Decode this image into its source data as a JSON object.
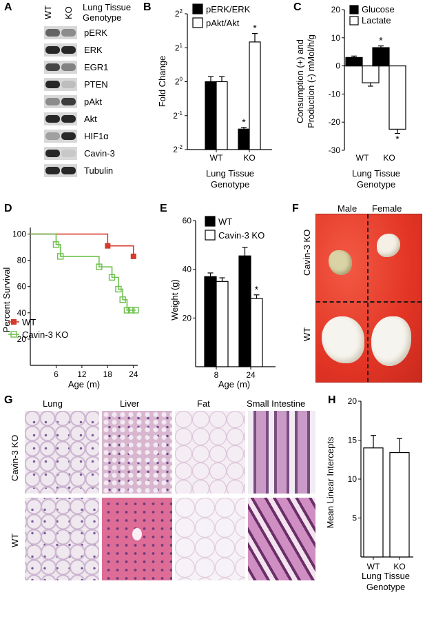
{
  "panels": [
    "A",
    "B",
    "C",
    "D",
    "E",
    "F",
    "G",
    "H"
  ],
  "panelA": {
    "lanes": [
      "WT",
      "KO"
    ],
    "header": [
      "Lung Tissue",
      "Genotype"
    ],
    "proteins": [
      "pERK",
      "ERK",
      "EGR1",
      "PTEN",
      "pAkt",
      "Akt",
      "HIF1α",
      "Cavin-3",
      "Tubulin"
    ],
    "wt_intensity": [
      0.55,
      0.85,
      0.7,
      0.85,
      0.35,
      0.85,
      0.25,
      0.85,
      0.85
    ],
    "ko_intensity": [
      0.35,
      0.85,
      0.4,
      0.1,
      0.75,
      0.85,
      0.85,
      0.05,
      0.85
    ]
  },
  "panelF": {
    "col_labels": [
      "Male",
      "Female"
    ],
    "row_labels": [
      "Cavin-3 KO",
      "WT"
    ]
  },
  "panelG": {
    "col_labels": [
      "Lung",
      "Liver",
      "Fat",
      "Small Intestine"
    ],
    "row_labels": [
      "Cavin-3 KO",
      "WT"
    ]
  },
  "chart_data": [
    {
      "panel": "B",
      "type": "bar",
      "categories": [
        "WT",
        "KO"
      ],
      "series": [
        {
          "name": "pERK/ERK",
          "color": "#000000",
          "values": [
            1.0,
            0.38
          ],
          "errors": [
            0.15,
            0.05
          ],
          "significant": [
            false,
            true
          ]
        },
        {
          "name": "pAkt/Akt",
          "color": "#ffffff",
          "values": [
            1.0,
            2.25
          ],
          "errors": [
            0.15,
            0.25
          ],
          "significant": [
            false,
            true
          ]
        }
      ],
      "ylabel": "Fold Change",
      "xlabel": [
        "Lung Tissue",
        "Genotype"
      ],
      "yscale": "log2",
      "ylim": [
        0.25,
        4
      ],
      "yticks_exp": [
        "2",
        "1",
        "0",
        "-1",
        "-2"
      ]
    },
    {
      "panel": "C",
      "type": "bar",
      "categories": [
        "WT",
        "KO"
      ],
      "series": [
        {
          "name": "Glucose",
          "color": "#000000",
          "values": [
            3,
            6.5
          ],
          "errors": [
            0.5,
            0.6
          ],
          "significant": [
            false,
            true
          ]
        },
        {
          "name": "Lactate",
          "color": "#ffffff",
          "values": [
            -6,
            -22.5
          ],
          "errors": [
            1.2,
            1.5
          ],
          "significant": [
            false,
            true
          ]
        }
      ],
      "ylabel": [
        "Consumption (+) and",
        "Production (-) mMol/h/g"
      ],
      "xlabel": [
        "Lung Tissue",
        "Genotype"
      ],
      "ylim": [
        -30,
        20
      ],
      "yticks": [
        "20",
        "10",
        "0",
        "-10",
        "-20",
        "-30"
      ]
    },
    {
      "panel": "D",
      "type": "line",
      "xlabel": "Age (m)",
      "ylabel": "Percent Survival",
      "xlim": [
        0,
        25
      ],
      "ylim": [
        0,
        105
      ],
      "xticks": [
        "6",
        "12",
        "18",
        "24"
      ],
      "yticks": [
        "100",
        "80",
        "60",
        "40",
        "20"
      ],
      "series": [
        {
          "name": "WT",
          "color": "#d63a2a",
          "x": [
            0,
            18,
            18,
            24,
            24
          ],
          "y": [
            100,
            100,
            91,
            91,
            83
          ],
          "markers": [
            [
              18,
              91
            ],
            [
              24,
              83
            ]
          ]
        },
        {
          "name": "Cavin-3 KO",
          "color": "#6cc04a",
          "x": [
            0,
            6,
            6,
            7,
            7,
            16,
            16,
            19,
            19,
            20.5,
            20.5,
            21.5,
            21.5,
            22.5,
            22.5,
            23.5,
            23.5,
            24.5
          ],
          "y": [
            100,
            100,
            92,
            92,
            83,
            83,
            75,
            75,
            67,
            67,
            58,
            58,
            50,
            50,
            42,
            42,
            42,
            42
          ],
          "markers": [
            [
              6,
              92
            ],
            [
              7,
              83
            ],
            [
              16,
              75
            ],
            [
              19,
              67
            ],
            [
              20.5,
              58
            ],
            [
              21.5,
              50
            ],
            [
              22.5,
              42
            ],
            [
              23.5,
              42
            ],
            [
              24.5,
              42
            ]
          ]
        }
      ]
    },
    {
      "panel": "E",
      "type": "bar",
      "categories": [
        "8",
        "24"
      ],
      "xlabel": "Age (m)",
      "ylabel": "Weight (g)",
      "ylim": [
        0,
        60
      ],
      "yticks": [
        "60",
        "40",
        "20"
      ],
      "series": [
        {
          "name": "WT",
          "color": "#000000",
          "values": [
            37,
            45.5
          ],
          "errors": [
            1.5,
            3.5
          ],
          "significant": [
            false,
            false
          ]
        },
        {
          "name": "Cavin-3 KO",
          "color": "#ffffff",
          "values": [
            35,
            28
          ],
          "errors": [
            1.5,
            1.5
          ],
          "significant": [
            false,
            true
          ]
        }
      ]
    },
    {
      "panel": "H",
      "type": "bar",
      "categories": [
        "WT",
        "KO"
      ],
      "xlabel": [
        "Lung Tissue",
        "Genotype"
      ],
      "ylabel": "Mean Linear Intercepts",
      "ylim": [
        0,
        20
      ],
      "yticks": [
        "20",
        "15",
        "10",
        "5"
      ],
      "series": [
        {
          "name": "",
          "color": "#ffffff",
          "values": [
            14,
            13.4
          ],
          "errors": [
            1.6,
            1.8
          ],
          "significant": [
            false,
            false
          ]
        }
      ]
    }
  ]
}
